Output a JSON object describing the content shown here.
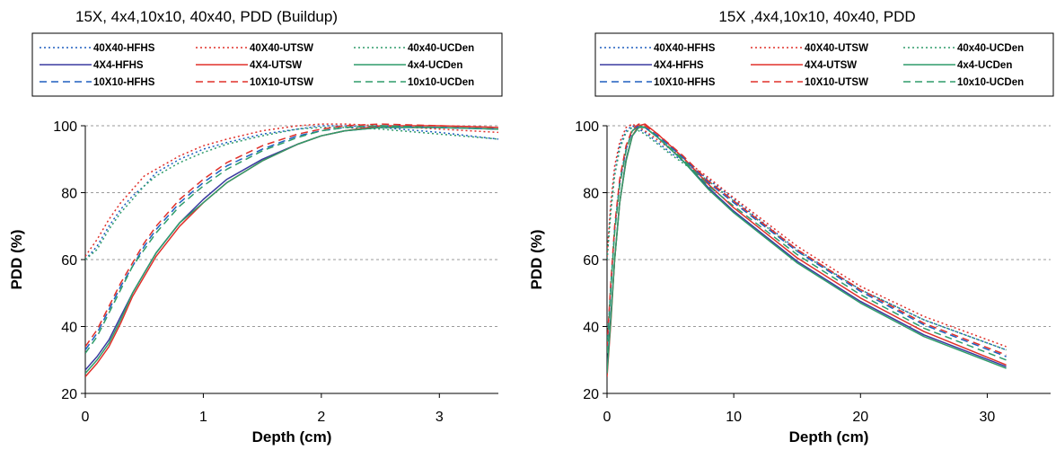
{
  "chart_data": [
    {
      "type": "line",
      "title": "15X, 4x4,10x10, 40x40, PDD (Buildup)",
      "xlabel": "Depth (cm)",
      "ylabel": "PDD (%)",
      "xlim": [
        0,
        3.5
      ],
      "ylim": [
        20,
        100
      ],
      "xticks": [
        0,
        1,
        2,
        3
      ],
      "yticks": [
        20,
        40,
        60,
        80,
        100
      ],
      "grid": "horizontal dashed",
      "legend_position": "top",
      "series": [
        {
          "name": "40X40-HFHS",
          "color": "#1f5fbf",
          "dash": "dotted",
          "x": [
            0,
            0.1,
            0.2,
            0.3,
            0.4,
            0.5,
            0.6,
            0.8,
            1.0,
            1.2,
            1.5,
            1.8,
            2.0,
            2.2,
            2.5,
            3.0,
            3.5
          ],
          "y": [
            60,
            64,
            70,
            75,
            79,
            82,
            86,
            90,
            93,
            95,
            97.5,
            99,
            100,
            100,
            99.5,
            98,
            96
          ]
        },
        {
          "name": "40X40-UTSW",
          "color": "#e0302a",
          "dash": "dotted",
          "x": [
            0,
            0.1,
            0.2,
            0.3,
            0.4,
            0.5,
            0.6,
            0.8,
            1.0,
            1.2,
            1.5,
            1.8,
            2.0,
            2.2,
            2.5,
            3.0,
            3.5
          ],
          "y": [
            61,
            66,
            72,
            77,
            81,
            85,
            87,
            91,
            94,
            96,
            98.5,
            100,
            100.5,
            100.5,
            100,
            99,
            98
          ]
        },
        {
          "name": "40x40-UCDen",
          "color": "#2e9c6a",
          "dash": "dotted",
          "x": [
            0,
            0.1,
            0.2,
            0.3,
            0.4,
            0.5,
            0.6,
            0.8,
            1.0,
            1.2,
            1.5,
            1.8,
            2.0,
            2.2,
            2.5,
            3.0,
            3.5
          ],
          "y": [
            60,
            63,
            69,
            74,
            78,
            82,
            85,
            89,
            92,
            94.5,
            97,
            99,
            99.5,
            99.5,
            99,
            97.5,
            96
          ]
        },
        {
          "name": "4X4-HFHS",
          "color": "#3a3aa0",
          "dash": "solid",
          "x": [
            0,
            0.1,
            0.2,
            0.3,
            0.4,
            0.5,
            0.6,
            0.8,
            1.0,
            1.2,
            1.5,
            1.8,
            2.0,
            2.2,
            2.5,
            3.0,
            3.5
          ],
          "y": [
            27,
            31,
            36,
            43,
            50,
            56,
            62,
            71,
            78,
            84,
            90,
            94.5,
            97,
            98.5,
            99.5,
            99.5,
            99
          ]
        },
        {
          "name": "4X4-UTSW",
          "color": "#e0302a",
          "dash": "solid",
          "x": [
            0,
            0.1,
            0.2,
            0.3,
            0.4,
            0.5,
            0.6,
            0.8,
            1.0,
            1.2,
            1.5,
            1.8,
            2.0,
            2.2,
            2.5,
            3.0,
            3.5
          ],
          "y": [
            25,
            29,
            34,
            41,
            49,
            55,
            61,
            70,
            77,
            83,
            89.5,
            94.5,
            97,
            98.5,
            100,
            100,
            99.5
          ]
        },
        {
          "name": "4x4-UCDen",
          "color": "#2e9c6a",
          "dash": "solid",
          "x": [
            0,
            0.1,
            0.2,
            0.3,
            0.4,
            0.5,
            0.6,
            0.8,
            1.0,
            1.2,
            1.5,
            1.8,
            2.0,
            2.2,
            2.5,
            3.0,
            3.5
          ],
          "y": [
            26,
            30,
            35,
            42,
            50,
            56,
            62,
            71,
            77,
            83,
            89.5,
            94.5,
            97,
            98.5,
            99.5,
            99.5,
            99
          ]
        },
        {
          "name": "10X10-HFHS",
          "color": "#1f5fbf",
          "dash": "dashed",
          "x": [
            0,
            0.1,
            0.2,
            0.3,
            0.4,
            0.5,
            0.6,
            0.8,
            1.0,
            1.2,
            1.5,
            1.8,
            2.0,
            2.2,
            2.5,
            3.0,
            3.5
          ],
          "y": [
            33,
            38,
            45,
            52,
            58,
            64,
            69,
            77,
            83,
            88,
            93,
            97,
            98.5,
            99.5,
            100,
            99.5,
            99
          ]
        },
        {
          "name": "10X10-UTSW",
          "color": "#e0302a",
          "dash": "dashed",
          "x": [
            0,
            0.1,
            0.2,
            0.3,
            0.4,
            0.5,
            0.6,
            0.8,
            1.0,
            1.2,
            1.5,
            1.8,
            2.0,
            2.2,
            2.5,
            3.0,
            3.5
          ],
          "y": [
            34,
            39,
            46,
            53,
            59,
            65,
            70,
            78,
            84,
            89,
            94,
            97.5,
            99,
            100,
            100.5,
            100,
            99.5
          ]
        },
        {
          "name": "10x10-UCDen",
          "color": "#2e9c6a",
          "dash": "dashed",
          "x": [
            0,
            0.1,
            0.2,
            0.3,
            0.4,
            0.5,
            0.6,
            0.8,
            1.0,
            1.2,
            1.5,
            1.8,
            2.0,
            2.2,
            2.5,
            3.0,
            3.5
          ],
          "y": [
            32,
            37,
            44,
            51,
            58,
            63,
            68,
            76,
            82,
            87,
            92.5,
            96.5,
            98.5,
            99.5,
            100,
            99.5,
            99
          ]
        }
      ]
    },
    {
      "type": "line",
      "title": "15X ,4x4,10x10, 40x40, PDD",
      "xlabel": "Depth (cm)",
      "ylabel": "PDD (%)",
      "xlim": [
        0,
        35
      ],
      "ylim": [
        20,
        100
      ],
      "xticks": [
        0,
        10,
        20,
        30
      ],
      "yticks": [
        20,
        40,
        60,
        80,
        100
      ],
      "grid": "horizontal dashed",
      "legend_position": "top",
      "series": [
        {
          "name": "40X40-HFHS",
          "color": "#1f5fbf",
          "dash": "dotted",
          "x": [
            0,
            0.3,
            0.6,
            1.0,
            1.5,
            2.0,
            3.0,
            5.0,
            8.0,
            10.0,
            15.0,
            20.0,
            25.0,
            31.5
          ],
          "y": [
            60,
            75,
            86,
            94,
            98.5,
            100,
            98,
            92,
            84,
            78,
            63,
            51,
            42,
            33
          ]
        },
        {
          "name": "40X40-UTSW",
          "color": "#e0302a",
          "dash": "dotted",
          "x": [
            0,
            0.3,
            0.6,
            1.0,
            1.5,
            2.0,
            3.0,
            5.0,
            8.0,
            10.0,
            15.0,
            20.0,
            25.0,
            31.5
          ],
          "y": [
            61,
            77,
            88,
            95,
            99.5,
            100.5,
            98.5,
            93,
            84.5,
            78.5,
            64,
            52,
            43,
            34
          ]
        },
        {
          "name": "40x40-UCDen",
          "color": "#2e9c6a",
          "dash": "dotted",
          "x": [
            0,
            0.3,
            0.6,
            1.0,
            1.5,
            2.0,
            3.0,
            5.0,
            8.0,
            10.0,
            15.0,
            20.0,
            25.0,
            31.5
          ],
          "y": [
            60,
            74,
            85,
            93,
            98,
            99.5,
            97.5,
            91.5,
            83.5,
            77.5,
            62.5,
            51,
            42,
            33
          ]
        },
        {
          "name": "4X4-HFHS",
          "color": "#3a3aa0",
          "dash": "solid",
          "x": [
            0,
            0.3,
            0.6,
            1.0,
            1.5,
            2.0,
            2.5,
            3.0,
            4.0,
            6.0,
            8.0,
            10.0,
            15.0,
            20.0,
            25.0,
            31.5
          ],
          "y": [
            27,
            43,
            60,
            77,
            90,
            97,
            99.5,
            99.5,
            96.5,
            89.5,
            81.5,
            74.5,
            59.5,
            47.5,
            37.5,
            28
          ]
        },
        {
          "name": "4X4-UTSW",
          "color": "#e0302a",
          "dash": "solid",
          "x": [
            0,
            0.3,
            0.6,
            1.0,
            1.5,
            2.0,
            2.5,
            3.0,
            4.0,
            6.0,
            8.0,
            10.0,
            15.0,
            20.0,
            25.0,
            31.5
          ],
          "y": [
            25,
            41,
            60,
            77,
            89.5,
            97,
            100,
            100.5,
            97.5,
            90.5,
            82.5,
            75.5,
            60.5,
            48.5,
            38.5,
            28.5
          ]
        },
        {
          "name": "4x4-UCDen",
          "color": "#2e9c6a",
          "dash": "solid",
          "x": [
            0,
            0.3,
            0.6,
            1.0,
            1.5,
            2.0,
            2.5,
            3.0,
            4.0,
            6.0,
            8.0,
            10.0,
            15.0,
            20.0,
            25.0,
            31.5
          ],
          "y": [
            26,
            42,
            60,
            77,
            89.5,
            97,
            99.5,
            99.5,
            96.5,
            89.5,
            81,
            74,
            59,
            47,
            37,
            27.5
          ]
        },
        {
          "name": "10X10-HFHS",
          "color": "#1f5fbf",
          "dash": "dashed",
          "x": [
            0,
            0.3,
            0.6,
            1.0,
            1.5,
            2.0,
            2.5,
            3.0,
            4.0,
            6.0,
            8.0,
            10.0,
            15.0,
            20.0,
            25.0,
            31.5
          ],
          "y": [
            33,
            52,
            69,
            83,
            93,
            98.5,
            100,
            99.5,
            97,
            90.5,
            83,
            77,
            62.5,
            50.5,
            40.5,
            31
          ]
        },
        {
          "name": "10X10-UTSW",
          "color": "#e0302a",
          "dash": "dashed",
          "x": [
            0,
            0.3,
            0.6,
            1.0,
            1.5,
            2.0,
            2.5,
            3.0,
            4.0,
            6.0,
            8.0,
            10.0,
            15.0,
            20.0,
            25.0,
            31.5
          ],
          "y": [
            34,
            53,
            70,
            84,
            94,
            99,
            100.5,
            100,
            97.5,
            91,
            83.5,
            77.5,
            63,
            51,
            41,
            31.5
          ]
        },
        {
          "name": "10x10-UCDen",
          "color": "#2e9c6a",
          "dash": "dashed",
          "x": [
            0,
            0.3,
            0.6,
            1.0,
            1.5,
            2.0,
            2.5,
            3.0,
            4.0,
            6.0,
            8.0,
            10.0,
            15.0,
            20.0,
            25.0,
            31.5
          ],
          "y": [
            32,
            51,
            68,
            82,
            92.5,
            98.5,
            100,
            99.5,
            96.5,
            90,
            82,
            76,
            61.5,
            49.5,
            39.5,
            30
          ]
        }
      ]
    }
  ]
}
